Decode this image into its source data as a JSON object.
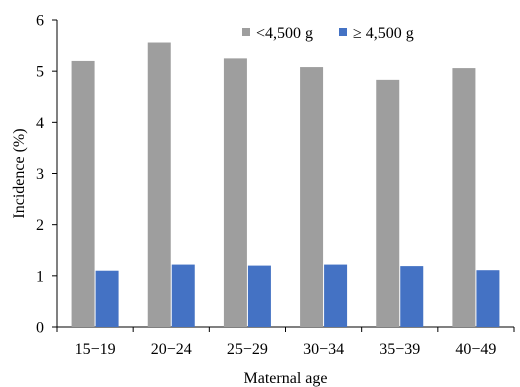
{
  "chart_data": {
    "type": "bar",
    "xlabel": "Maternal age",
    "ylabel": "Incidence (%)",
    "ylim": [
      0,
      6
    ],
    "yticks": [
      "0",
      "1",
      "2",
      "3",
      "4",
      "5",
      "6"
    ],
    "categories": [
      "15−19",
      "20−24",
      "25−29",
      "30−34",
      "35−39",
      "40−49"
    ],
    "series": [
      {
        "name": "<4,500 g",
        "color": "#9e9e9e",
        "values": [
          5.2,
          5.56,
          5.25,
          5.08,
          4.83,
          5.06
        ]
      },
      {
        "name": "≥ 4,500 g",
        "color": "#4472c4",
        "values": [
          1.1,
          1.22,
          1.2,
          1.22,
          1.19,
          1.11
        ]
      }
    ],
    "legend_position": "top-right",
    "grid": false
  }
}
